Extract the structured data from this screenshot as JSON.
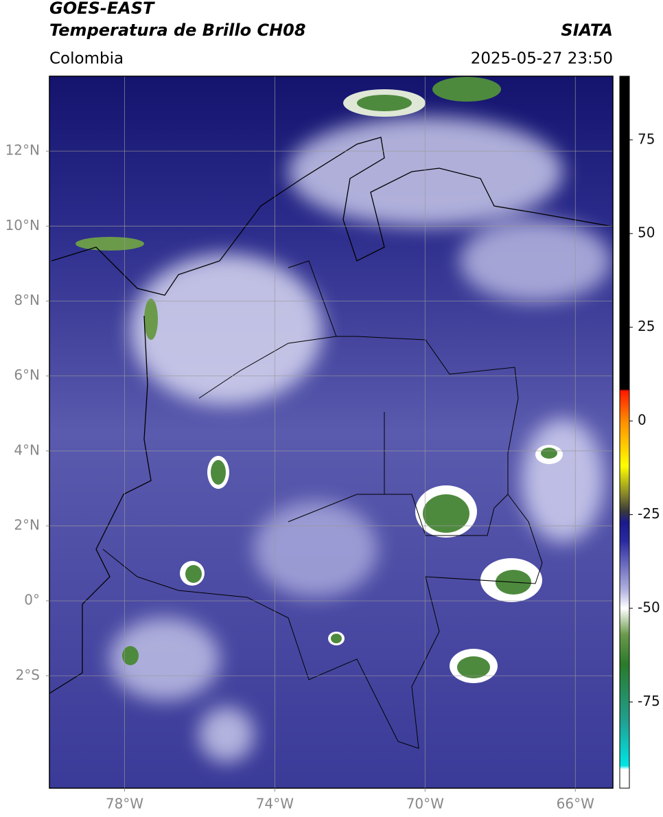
{
  "header": {
    "line1": "GOES-EAST",
    "line2": "Temperatura de Brillo CH08",
    "source": "SIATA",
    "region": "Colombia",
    "datetime": "2025-05-27 23:50"
  },
  "map": {
    "xlim": [
      -80,
      -65
    ],
    "ylim": [
      -5,
      14
    ],
    "grid": true,
    "xticks": [
      {
        "value": -78,
        "label": "78°W"
      },
      {
        "value": -74,
        "label": "74°W"
      },
      {
        "value": -70,
        "label": "70°W"
      },
      {
        "value": -66,
        "label": "66°W"
      }
    ],
    "yticks": [
      {
        "value": 12,
        "label": "12°N"
      },
      {
        "value": 10,
        "label": "10°N"
      },
      {
        "value": 8,
        "label": "8°N"
      },
      {
        "value": 6,
        "label": "6°N"
      },
      {
        "value": 4,
        "label": "4°N"
      },
      {
        "value": 2,
        "label": "2°N"
      },
      {
        "value": 0,
        "label": "0°"
      },
      {
        "value": -2,
        "label": "2°S"
      }
    ]
  },
  "colorbar": {
    "clim": [
      -98,
      92
    ],
    "ticks": [
      75,
      50,
      25,
      0,
      -25,
      -50,
      -75
    ],
    "stops": [
      {
        "value": 92,
        "color": "#000000"
      },
      {
        "value": 8.5,
        "color": "#000000"
      },
      {
        "value": 8,
        "color": "#ff1a00"
      },
      {
        "value": 0,
        "color": "#ff8c00"
      },
      {
        "value": -12,
        "color": "#ffff00"
      },
      {
        "value": -20,
        "color": "#7f7f2a"
      },
      {
        "value": -24,
        "color": "#3a3a3a"
      },
      {
        "value": -27,
        "color": "#1a1a8c"
      },
      {
        "value": -32,
        "color": "#2a2aa0"
      },
      {
        "value": -45,
        "color": "#b0b0e0"
      },
      {
        "value": -50,
        "color": "#ffffff"
      },
      {
        "value": -57,
        "color": "#6a9a4a"
      },
      {
        "value": -65,
        "color": "#2a7a2a"
      },
      {
        "value": -80,
        "color": "#20a090"
      },
      {
        "value": -92,
        "color": "#00e5e5"
      },
      {
        "value": -93,
        "color": "#ffffff"
      },
      {
        "value": -98,
        "color": "#ffffff"
      }
    ]
  }
}
